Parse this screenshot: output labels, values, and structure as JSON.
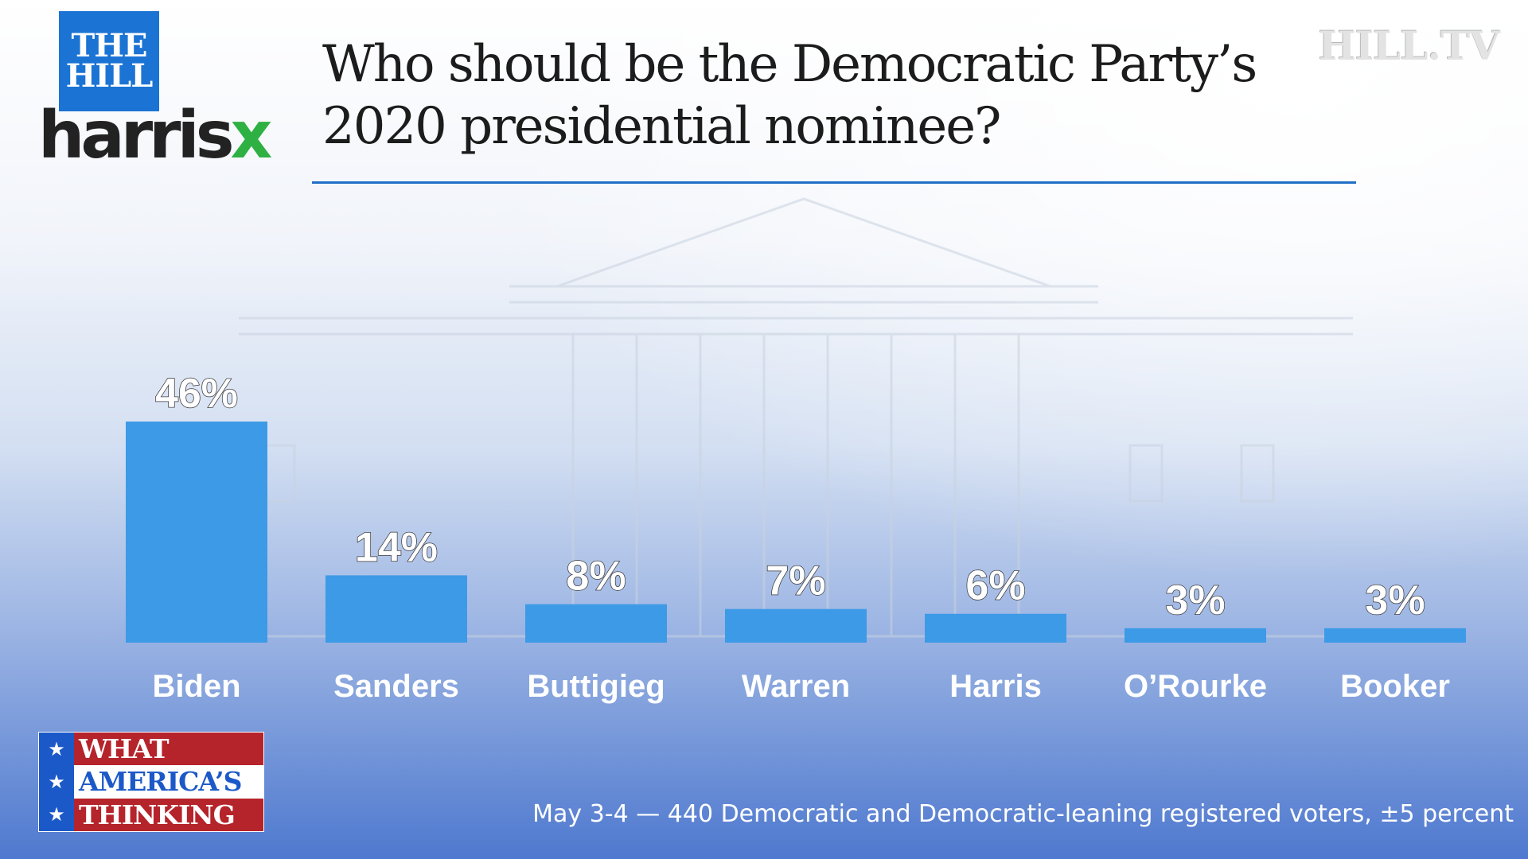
{
  "brand": {
    "hill_line1": "THE",
    "hill_line2": "HILL",
    "harrisx_main": "harris",
    "harrisx_accent": "x",
    "hilltv": "HILL.TV"
  },
  "colors": {
    "bar": "#3d9ae6",
    "title_rule": "#1f6fc7",
    "harrisx_green": "#2fb043",
    "hill_blue": "#1b74d4",
    "wat_red": "#b5232b",
    "wat_blue": "#1c59c8"
  },
  "chart_data": {
    "type": "bar",
    "title": "Who should be the Democratic Party’s 2020 presidential nominee?",
    "categories": [
      "Biden",
      "Sanders",
      "Buttigieg",
      "Warren",
      "Harris",
      "O’Rourke",
      "Booker"
    ],
    "values": [
      46,
      14,
      8,
      7,
      6,
      3,
      3
    ],
    "value_labels": [
      "46%",
      "14%",
      "8%",
      "7%",
      "6%",
      "3%",
      "3%"
    ],
    "ylim": [
      0,
      46
    ],
    "grid": false,
    "legend": "none"
  },
  "badge": {
    "line1": "WHAT",
    "line2": "AMERICA’S",
    "line3": "THINKING",
    "star": "★"
  },
  "footnote": "May 3-4 — 440 Democratic and Democratic-leaning registered voters, ±5 percent"
}
